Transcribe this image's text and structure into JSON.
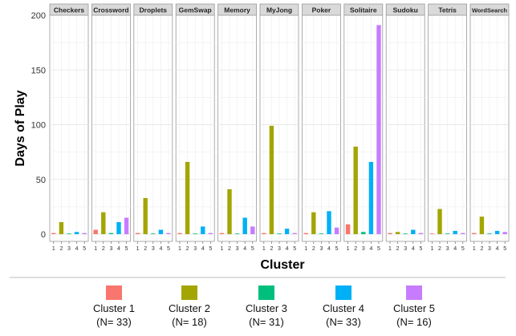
{
  "chart_data": {
    "type": "bar",
    "facet_by": "game",
    "facets": [
      "Checkers",
      "Crossword",
      "Droplets",
      "GemSwap",
      "Memory",
      "MyJong",
      "Poker",
      "Solitaire",
      "Sudoku",
      "Tetris",
      "WordSearch"
    ],
    "categories": [
      "1",
      "2",
      "3",
      "4",
      "5"
    ],
    "values": {
      "Checkers": [
        1,
        11,
        0,
        2,
        1
      ],
      "Crossword": [
        4,
        20,
        1,
        11,
        15
      ],
      "Droplets": [
        1,
        33,
        0,
        4,
        1
      ],
      "GemSwap": [
        1,
        66,
        0,
        7,
        1
      ],
      "Memory": [
        1,
        41,
        0,
        15,
        7
      ],
      "MyJong": [
        1,
        99,
        0,
        5,
        1
      ],
      "Poker": [
        1,
        20,
        0,
        21,
        6
      ],
      "Solitaire": [
        9,
        80,
        2,
        66,
        191
      ],
      "Sudoku": [
        1,
        2,
        0,
        4,
        1
      ],
      "Tetris": [
        0,
        23,
        0,
        3,
        1
      ],
      "WordSearch": [
        1,
        16,
        0,
        3,
        2
      ]
    },
    "series_colors": [
      "#F8766D",
      "#A3A500",
      "#00BF7D",
      "#00B0F6",
      "#C77CFF"
    ],
    "xlabel": "Cluster",
    "ylabel": "Days of Play",
    "ylim": [
      0,
      200
    ],
    "yticks": [
      0,
      50,
      100,
      150,
      200
    ],
    "grid": true,
    "legend": {
      "position": "bottom",
      "entries": [
        {
          "label": "Cluster 1",
          "n": "(N= 33)"
        },
        {
          "label": "Cluster 2",
          "n": "(N= 18)"
        },
        {
          "label": "Cluster 3",
          "n": "(N= 31)"
        },
        {
          "label": "Cluster 4",
          "n": "(N= 33)"
        },
        {
          "label": "Cluster 5",
          "n": "(N= 16)"
        }
      ]
    }
  }
}
